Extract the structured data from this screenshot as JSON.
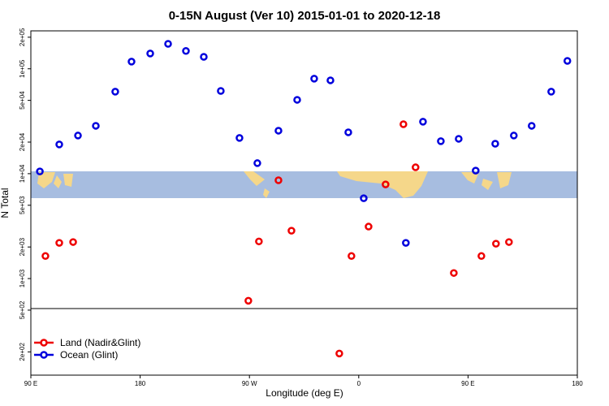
{
  "chart_data": {
    "type": "scatter",
    "title": "0-15N August (Ver 10)   2015-01-01 to 2020-12-18",
    "x_label": "Longitude (deg E)",
    "y_label": "N Total",
    "log_y": true,
    "legend_position": "bottom-left",
    "xlim": [
      90,
      540
    ],
    "ylim": [
      120,
      230000
    ],
    "xticks": [
      {
        "value": 90,
        "label": "90 E"
      },
      180,
      {
        "value": 270,
        "label": "90 W"
      },
      {
        "value": 360,
        "label": "0"
      },
      {
        "value": 450,
        "label": "90 E"
      },
      {
        "value": 540,
        "label": "180"
      }
    ],
    "yticks": [
      {
        "value": 200,
        "label": "2e+02"
      },
      {
        "value": 500,
        "label": "5e+02"
      },
      {
        "value": 1000,
        "label": "1e+03"
      },
      {
        "value": 2000,
        "label": "2e+03"
      },
      {
        "value": 5000,
        "label": "5e+03"
      },
      {
        "value": 10000,
        "label": "1e+04"
      },
      {
        "value": 20000,
        "label": "2e+04"
      },
      {
        "value": 50000,
        "label": "5e+04"
      },
      {
        "value": 100000,
        "label": "1e+05"
      },
      {
        "value": 200000,
        "label": "2e+05"
      }
    ],
    "series": [
      {
        "name": "Land (Nadir&Glint)",
        "color": "#ee0000",
        "x": [
          102,
          113.4,
          124.8,
          269.1,
          277.8,
          293.9,
          304.6,
          344,
          354,
          368.1,
          382.1,
          396.8,
          406.8,
          438.3,
          461,
          473,
          483.7
        ],
        "values": [
          1640,
          2190,
          2230,
          615,
          2260,
          8650,
          2860,
          193,
          1640,
          3130,
          7900,
          29600,
          11500,
          1130,
          1640,
          2150,
          2230
        ]
      },
      {
        "name": "Ocean (Glint)",
        "color": "#0000dd",
        "x": [
          97.4,
          113.4,
          128.8,
          143.5,
          159.5,
          172.9,
          188.3,
          203,
          217.7,
          232.4,
          246.4,
          261.8,
          276.5,
          293.9,
          309.3,
          323.3,
          336.7,
          351.4,
          364.1,
          398.8,
          412.9,
          427.6,
          442.3,
          456.3,
          472.4,
          487.7,
          502.4,
          518.5,
          531.8
        ],
        "values": [
          10500,
          19000,
          23100,
          28600,
          60500,
          117000,
          140000,
          173000,
          148000,
          130000,
          61500,
          21900,
          12600,
          25700,
          50600,
          80500,
          77600,
          24800,
          5830,
          2190,
          31300,
          20400,
          21500,
          10700,
          19300,
          23100,
          28600,
          60500,
          119000
        ]
      }
    ]
  }
}
